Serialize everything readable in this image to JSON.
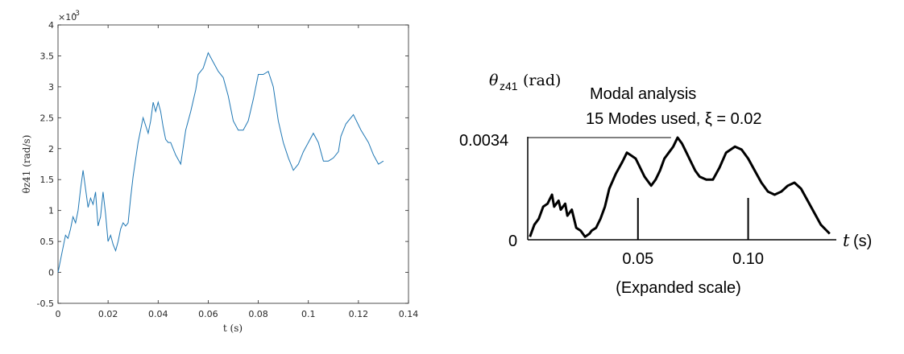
{
  "chart_data": [
    {
      "type": "line",
      "xlabel": "t (s)",
      "ylabel": "θz41 (rad/s)",
      "exponent_label": "×10",
      "exponent_value": "-3",
      "xlim": [
        0,
        0.14
      ],
      "ylim": [
        -0.5,
        4
      ],
      "y_scale_factor": 0.001,
      "xticks": [
        "0",
        "0.02",
        "0.04",
        "0.06",
        "0.08",
        "0.1",
        "0.12",
        "0.14"
      ],
      "yticks": [
        "-0.5",
        "0",
        "0.5",
        "1",
        "1.5",
        "2",
        "2.5",
        "3",
        "3.5",
        "4"
      ],
      "grid": false,
      "line_color": "#1f77b4",
      "series": [
        {
          "x": [
            0,
            0.002,
            0.003,
            0.004,
            0.005,
            0.006,
            0.007,
            0.008,
            0.009,
            0.01,
            0.011,
            0.012,
            0.013,
            0.014,
            0.015,
            0.016,
            0.017,
            0.018,
            0.019,
            0.02,
            0.021,
            0.022,
            0.023,
            0.024,
            0.025,
            0.026,
            0.027,
            0.028,
            0.029,
            0.03,
            0.032,
            0.034,
            0.036,
            0.037,
            0.038,
            0.039,
            0.04,
            0.041,
            0.042,
            0.043,
            0.044,
            0.045,
            0.047,
            0.049,
            0.051,
            0.053,
            0.055,
            0.056,
            0.058,
            0.06,
            0.062,
            0.064,
            0.066,
            0.068,
            0.07,
            0.072,
            0.074,
            0.076,
            0.078,
            0.08,
            0.082,
            0.084,
            0.086,
            0.088,
            0.09,
            0.092,
            0.094,
            0.096,
            0.098,
            0.1,
            0.102,
            0.104,
            0.106,
            0.108,
            0.11,
            0.112,
            0.113,
            0.115,
            0.118,
            0.121,
            0.124,
            0.126,
            0.128,
            0.13
          ],
          "y": [
            0,
            0.4,
            0.6,
            0.55,
            0.7,
            0.9,
            0.8,
            1.0,
            1.35,
            1.65,
            1.35,
            1.05,
            1.2,
            1.1,
            1.3,
            0.75,
            0.9,
            1.3,
            0.95,
            0.5,
            0.6,
            0.45,
            0.35,
            0.5,
            0.7,
            0.8,
            0.75,
            0.8,
            1.2,
            1.55,
            2.1,
            2.5,
            2.25,
            2.45,
            2.75,
            2.6,
            2.75,
            2.6,
            2.35,
            2.15,
            2.1,
            2.1,
            1.9,
            1.75,
            2.3,
            2.6,
            2.95,
            3.2,
            3.3,
            3.55,
            3.4,
            3.25,
            3.15,
            2.85,
            2.45,
            2.3,
            2.3,
            2.45,
            2.8,
            3.2,
            3.2,
            3.25,
            3.0,
            2.45,
            2.1,
            1.85,
            1.65,
            1.75,
            1.95,
            2.1,
            2.25,
            2.1,
            1.8,
            1.8,
            1.85,
            1.95,
            2.2,
            2.4,
            2.55,
            2.3,
            2.1,
            1.9,
            1.75,
            1.8
          ]
        }
      ]
    },
    {
      "type": "line",
      "ylabel_symbol": "θ",
      "ylabel_subscript": "z41",
      "ylabel_unit": "(rad)",
      "title_line1": "Modal analysis",
      "title_line2": "15 Modes used, ξ = 0.02",
      "xlabel_symbol": "t",
      "xlabel_unit": "(s)",
      "note": "(Expanded scale)",
      "peak_label": "0.0034",
      "zero_label": "0",
      "xtick_labels": [
        "0.05",
        "0.10"
      ],
      "xticks": [
        0.05,
        0.1
      ],
      "xlim": [
        0,
        0.14
      ],
      "ylim": [
        0,
        0.0034
      ],
      "peak_line_end": 0.065,
      "grid": false,
      "line_color": "#000000",
      "series": [
        {
          "x": [
            0.001,
            0.003,
            0.005,
            0.007,
            0.009,
            0.011,
            0.012,
            0.014,
            0.015,
            0.017,
            0.018,
            0.02,
            0.022,
            0.024,
            0.026,
            0.028,
            0.029,
            0.031,
            0.033,
            0.035,
            0.037,
            0.04,
            0.043,
            0.045,
            0.047,
            0.049,
            0.051,
            0.053,
            0.056,
            0.058,
            0.06,
            0.062,
            0.064,
            0.066,
            0.068,
            0.07,
            0.072,
            0.074,
            0.076,
            0.078,
            0.081,
            0.084,
            0.087,
            0.09,
            0.094,
            0.097,
            0.1,
            0.103,
            0.106,
            0.109,
            0.112,
            0.115,
            0.118,
            0.121,
            0.124,
            0.127,
            0.13,
            0.133,
            0.137
          ],
          "y": [
            0.0001,
            0.0005,
            0.0007,
            0.0011,
            0.0012,
            0.0015,
            0.0011,
            0.0013,
            0.001,
            0.0012,
            0.0008,
            0.001,
            0.0004,
            0.0003,
            0.0001,
            0.0002,
            0.0003,
            0.0004,
            0.0007,
            0.0011,
            0.0017,
            0.0022,
            0.0026,
            0.0029,
            0.0028,
            0.0027,
            0.0024,
            0.0021,
            0.0018,
            0.002,
            0.0023,
            0.0027,
            0.0029,
            0.0031,
            0.0034,
            0.0032,
            0.0029,
            0.0026,
            0.0023,
            0.0021,
            0.002,
            0.002,
            0.0024,
            0.0029,
            0.0031,
            0.003,
            0.0027,
            0.0023,
            0.0019,
            0.0016,
            0.0015,
            0.0016,
            0.0018,
            0.0019,
            0.0017,
            0.0013,
            0.0009,
            0.0005,
            0.0002
          ]
        }
      ]
    }
  ]
}
